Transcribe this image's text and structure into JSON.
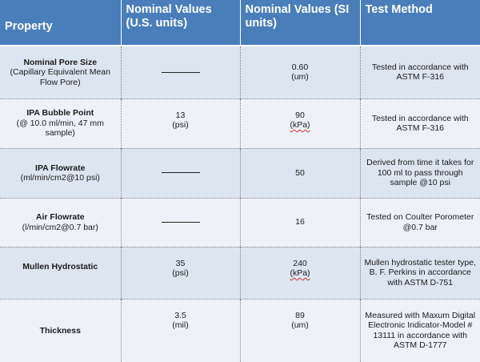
{
  "headers": {
    "property": "Property",
    "us": "Nominal Values (U.S. units)",
    "si": "Nominal Values (SI units)",
    "method": "Test Method"
  },
  "rows": [
    {
      "name": "Nominal Pore Size",
      "desc": "(Capillary Equivalent Mean Flow Pore)",
      "us_value": "",
      "us_unit": "",
      "si_value": "0.60",
      "si_unit": "(um)",
      "method": "Tested in accordance with ASTM F-316"
    },
    {
      "name": "IPA Bubble Point",
      "desc": "(@ 10.0 ml/min, 47 mm sample)",
      "us_value": "13",
      "us_unit": "(psi)",
      "si_value": "90",
      "si_unit": "(kPa)",
      "method": "Tested in accordance with ASTM F-316"
    },
    {
      "name": "IPA Flowrate",
      "desc": "(ml/min/cm2@10 psi)",
      "us_value": "",
      "us_unit": "",
      "si_value": "50",
      "si_unit": "",
      "method": "Derived from time it takes for 100 ml to pass through sample @10 psi"
    },
    {
      "name": "Air Flowrate",
      "desc": "(l/min/cm2@0.7 bar)",
      "us_value": "",
      "us_unit": "",
      "si_value": "16",
      "si_unit": "",
      "method": "Tested on Coulter Porometer @0.7 bar"
    },
    {
      "name": "Mullen Hydrostatic",
      "desc": "",
      "us_value": "35",
      "us_unit": "(psi)",
      "si_value": "240",
      "si_unit": "(kPa)",
      "method": "Mullen hydrostatic tester type, B. F. Perkins in accordance with ASTM D-751"
    },
    {
      "name": "Thickness",
      "desc": "",
      "us_value": "3.5",
      "us_unit": "(mil)",
      "si_value": "89",
      "si_unit": "(um)",
      "method": "Measured with Maxum Digital Electronic Indicator-Model # 13111 in accordance with ASTM D-1777"
    }
  ]
}
